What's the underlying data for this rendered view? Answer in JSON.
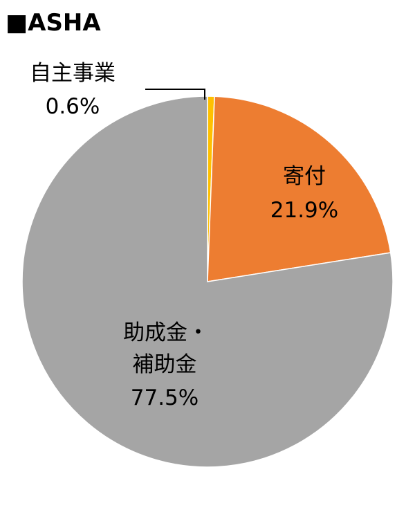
{
  "title": "■ASHA",
  "chart_data": {
    "type": "pie",
    "title": "■ASHA",
    "slices": [
      {
        "label": "自主事業",
        "value": 0.6,
        "value_text": "0.6%",
        "color": "#FFC000"
      },
      {
        "label": "寄付",
        "value": 21.9,
        "value_text": "21.9%",
        "color": "#ED7D31"
      },
      {
        "label": "助成金・補助金",
        "value": 77.5,
        "value_text": "77.5%",
        "color": "#A5A5A5"
      }
    ]
  }
}
